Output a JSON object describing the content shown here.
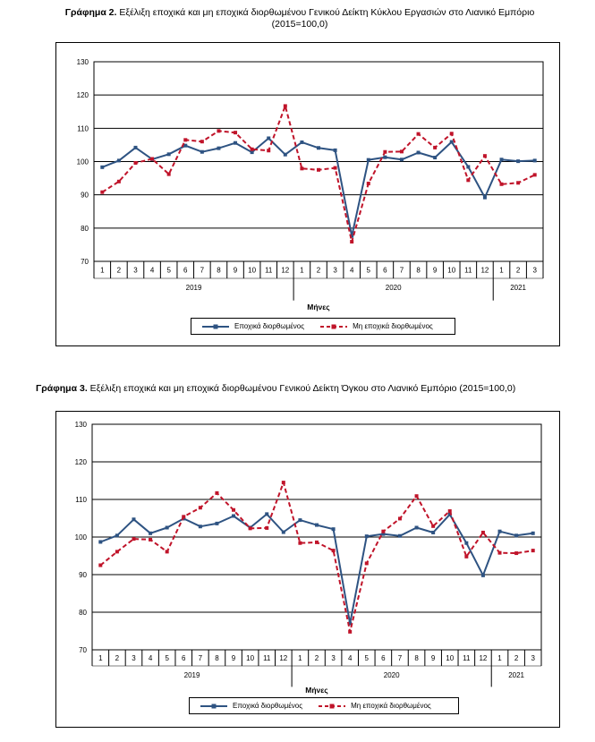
{
  "captions": [
    {
      "prefix": "Γράφημα 2.",
      "text": " Εξέλιξη εποχικά και μη εποχικά διορθωμένου Γενικού Δείκτη Κύκλου Εργασιών στο Λιανικό Εμπόριο",
      "line2": "(2015=100,0)"
    },
    {
      "prefix": "Γράφημα 3.",
      "text": " Εξέλιξη εποχικά και μη εποχικά διορθωμένου Γενικού Δείκτη Όγκου στο Λιανικό Εμπόριο (2015=100,0)",
      "line2": ""
    }
  ],
  "colors": {
    "seasonal": "#2e5382",
    "non_seasonal": "#c0142a",
    "grid": "#000000"
  },
  "legend": {
    "seasonal": "Εποχικά διορθωμένος",
    "non_seasonal": "Μη εποχικά διορθωμένος"
  },
  "chart_data": [
    {
      "type": "line",
      "title": "",
      "xlabel": "Μήνες",
      "ylabel": "",
      "ylim": [
        70,
        130
      ],
      "yticks": [
        70,
        80,
        90,
        100,
        110,
        120,
        130
      ],
      "categories": [
        "1",
        "2",
        "3",
        "4",
        "5",
        "6",
        "7",
        "8",
        "9",
        "10",
        "11",
        "12",
        "1",
        "2",
        "3",
        "4",
        "5",
        "6",
        "7",
        "8",
        "9",
        "10",
        "11",
        "12",
        "1",
        "2",
        "3"
      ],
      "years": [
        {
          "label": "2019",
          "count": 12
        },
        {
          "label": "2020",
          "count": 12
        },
        {
          "label": "2021",
          "count": 3
        }
      ],
      "grid": true,
      "legend_position": "bottom",
      "series": [
        {
          "name": "Εποχικά διορθωμένος",
          "values": [
            98.3,
            100.3,
            104.2,
            100.7,
            102.2,
            104.8,
            102.9,
            104.0,
            105.6,
            102.8,
            107.0,
            102.1,
            105.8,
            104.1,
            103.4,
            77.6,
            100.5,
            101.3,
            100.6,
            102.7,
            101.2,
            105.9,
            98.4,
            89.2,
            100.6,
            100.1,
            100.3
          ]
        },
        {
          "name": "Μη εποχικά διορθωμένος",
          "values": [
            90.8,
            94.0,
            99.6,
            100.8,
            96.2,
            106.5,
            106.0,
            109.2,
            108.7,
            103.7,
            103.3,
            116.7,
            97.9,
            97.5,
            98.1,
            75.9,
            93.4,
            102.9,
            103.0,
            108.3,
            104.2,
            108.4,
            94.4,
            101.7,
            93.2,
            93.6,
            96.0
          ]
        }
      ]
    },
    {
      "type": "line",
      "title": "",
      "xlabel": "Μήνες",
      "ylabel": "",
      "ylim": [
        70,
        130
      ],
      "yticks": [
        70,
        80,
        90,
        100,
        110,
        120,
        130
      ],
      "categories": [
        "1",
        "2",
        "3",
        "4",
        "5",
        "6",
        "7",
        "8",
        "9",
        "10",
        "11",
        "12",
        "1",
        "2",
        "3",
        "4",
        "5",
        "6",
        "7",
        "8",
        "9",
        "10",
        "11",
        "12",
        "1",
        "2",
        "3"
      ],
      "years": [
        {
          "label": "2019",
          "count": 12
        },
        {
          "label": "2020",
          "count": 12
        },
        {
          "label": "2021",
          "count": 3
        }
      ],
      "grid": true,
      "legend_position": "bottom",
      "series": [
        {
          "name": "Εποχικά διορθωμένος",
          "values": [
            98.7,
            100.4,
            104.7,
            101.0,
            102.5,
            104.9,
            102.8,
            103.6,
            105.6,
            102.5,
            106.1,
            101.3,
            104.5,
            103.2,
            102.1,
            77.0,
            100.2,
            100.8,
            100.3,
            102.5,
            101.2,
            106.0,
            98.4,
            89.8,
            101.5,
            100.4,
            101.0
          ]
        },
        {
          "name": "Μη εποχικά διορθωμένος",
          "values": [
            92.5,
            96.1,
            99.5,
            99.3,
            96.1,
            105.4,
            107.8,
            111.7,
            107.2,
            102.3,
            102.4,
            114.5,
            98.4,
            98.6,
            96.4,
            74.8,
            93.0,
            101.5,
            104.9,
            110.9,
            102.9,
            106.9,
            94.8,
            101.2,
            95.8,
            95.7,
            96.4
          ]
        }
      ]
    }
  ]
}
